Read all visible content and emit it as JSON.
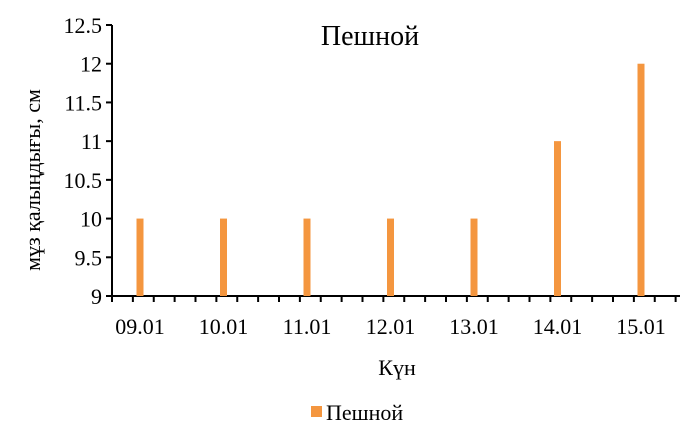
{
  "chart_data": {
    "type": "bar",
    "title": "Пешной",
    "xlabel": "Күн",
    "ylabel": "мұз қалыңдығы, см",
    "categories": [
      "09.01",
      "10.01",
      "11.01",
      "12.01",
      "13.01",
      "14.01",
      "15.01"
    ],
    "series": [
      {
        "name": "Пешной",
        "values": [
          10,
          10,
          10,
          10,
          10,
          11,
          12
        ],
        "color": "#F4963F"
      }
    ],
    "ylim": [
      9,
      12.5
    ],
    "yticks": [
      "9",
      "9.5",
      "10",
      "10.5",
      "11",
      "11.5",
      "12",
      "12.5"
    ],
    "grid": false,
    "legend_position": "bottom"
  }
}
